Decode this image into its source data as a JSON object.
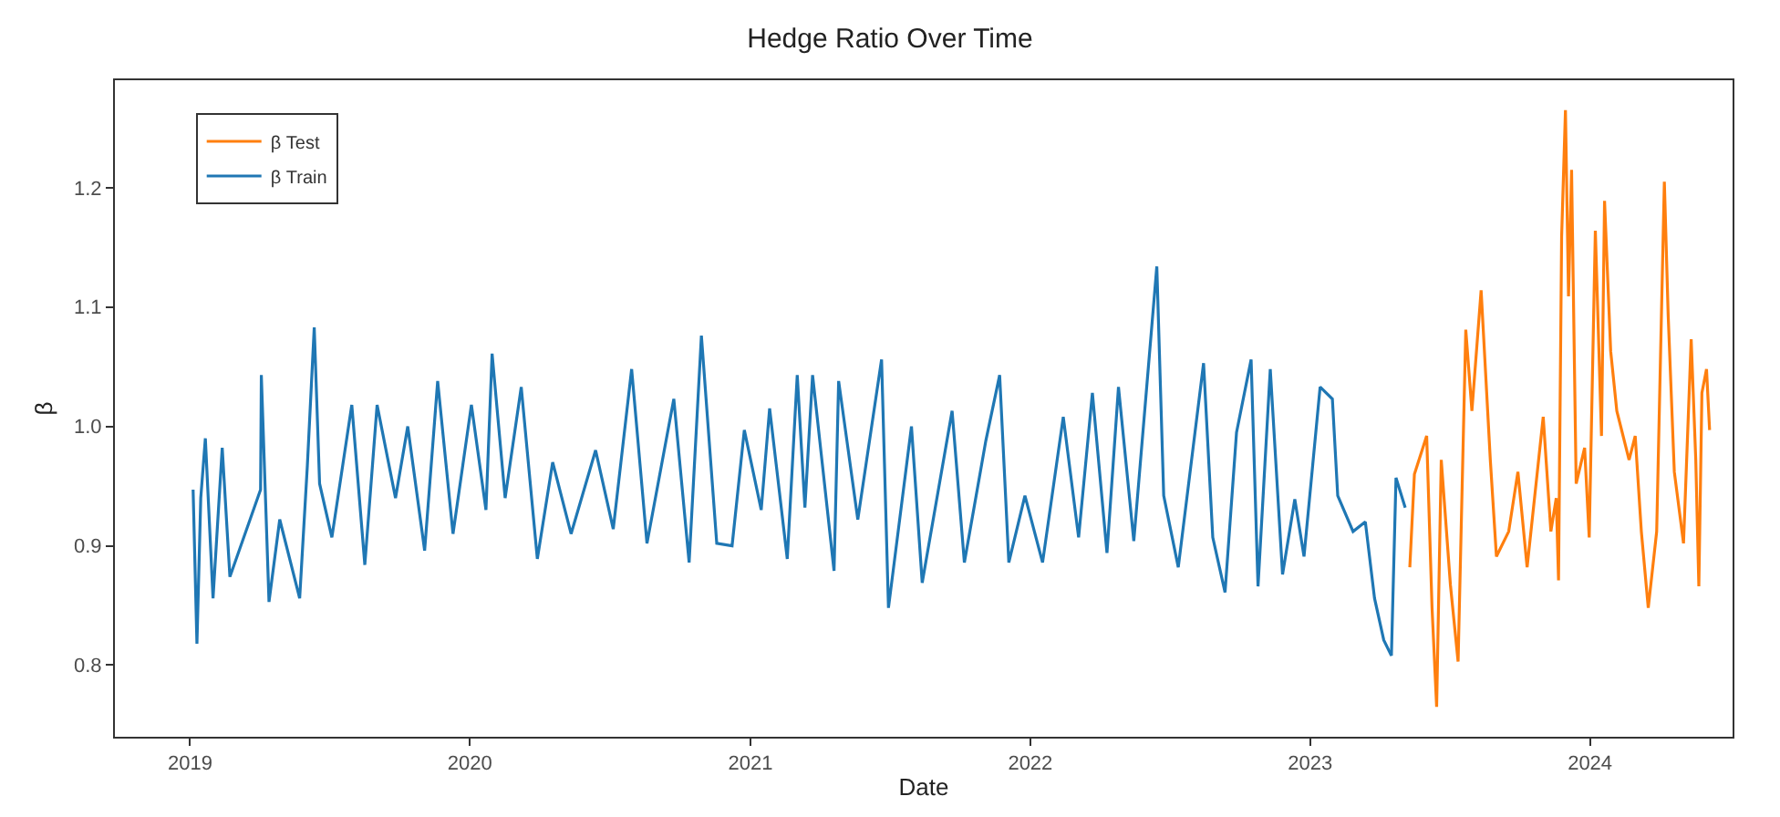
{
  "chart_data": {
    "type": "line",
    "title": "Hedge Ratio Over Time",
    "xlabel": "Date",
    "ylabel": "β",
    "xlim": [
      "2018-09-25",
      "2024-07-05"
    ],
    "ylim": [
      0.74,
      1.29
    ],
    "xticks": [
      "2019",
      "2020",
      "2021",
      "2022",
      "2023",
      "2024"
    ],
    "yticks": [
      0.8,
      0.9,
      {
        "value": 1.0,
        "label": "1.0"
      },
      1.1,
      1.2
    ],
    "grid": false,
    "legend": "top left",
    "marker": "none",
    "line_style": "solid",
    "series": [
      {
        "name": "β Test",
        "color": "#ff7f0e",
        "x": [
          "2023-05-11",
          "2023-05-17",
          "2023-06-02",
          "2023-06-09",
          "2023-06-15",
          "2023-06-21",
          "2023-07-03",
          "2023-07-13",
          "2023-07-23",
          "2023-07-31",
          "2023-08-12",
          "2023-08-24",
          "2023-09-01",
          "2023-09-17",
          "2023-09-29",
          "2023-10-11",
          "2023-11-01",
          "2023-11-11",
          "2023-11-18",
          "2023-11-21",
          "2023-11-25",
          "2023-11-30",
          "2023-12-04",
          "2023-12-08",
          "2023-12-14",
          "2023-12-25",
          "2023-12-31",
          "2024-01-08",
          "2024-01-16",
          "2024-01-20",
          "2024-01-28",
          "2024-02-05",
          "2024-02-21",
          "2024-02-29",
          "2024-03-08",
          "2024-03-17",
          "2024-03-28",
          "2024-04-07",
          "2024-04-12",
          "2024-04-20",
          "2024-05-02",
          "2024-05-12",
          "2024-05-18",
          "2024-05-22",
          "2024-05-26",
          "2024-06-01",
          "2024-06-05"
        ],
        "values": [
          0.882,
          0.96,
          0.992,
          0.848,
          0.765,
          0.972,
          0.867,
          0.803,
          1.081,
          1.013,
          1.114,
          0.972,
          0.891,
          0.912,
          0.962,
          0.882,
          1.008,
          0.912,
          0.94,
          0.871,
          1.159,
          1.265,
          1.109,
          1.215,
          0.952,
          0.982,
          0.907,
          1.164,
          0.992,
          1.189,
          1.063,
          1.013,
          0.972,
          0.992,
          0.912,
          0.848,
          0.912,
          1.205,
          1.093,
          0.962,
          0.902,
          1.073,
          0.972,
          0.866,
          1.028,
          1.048,
          0.997
        ]
      },
      {
        "name": "β Train",
        "color": "#1f77b4",
        "x": [
          "2019-01-05",
          "2019-01-10",
          "2019-01-15",
          "2019-01-21",
          "2019-01-31",
          "2019-02-12",
          "2019-02-22",
          "2019-04-03",
          "2019-04-04",
          "2019-04-14",
          "2019-04-28",
          "2019-05-24",
          "2019-06-03",
          "2019-06-12",
          "2019-06-19",
          "2019-07-05",
          "2019-07-31",
          "2019-08-17",
          "2019-09-02",
          "2019-09-26",
          "2019-10-12",
          "2019-11-03",
          "2019-11-20",
          "2019-12-10",
          "2020-01-03",
          "2020-01-22",
          "2020-01-30",
          "2020-02-16",
          "2020-03-08",
          "2020-03-29",
          "2020-04-18",
          "2020-05-12",
          "2020-06-13",
          "2020-07-06",
          "2020-07-30",
          "2020-08-19",
          "2020-09-23",
          "2020-10-13",
          "2020-10-29",
          "2020-11-18",
          "2020-12-08",
          "2020-12-24",
          "2021-01-15",
          "2021-01-26",
          "2021-02-18",
          "2021-03-03",
          "2021-03-13",
          "2021-03-23",
          "2021-04-20",
          "2021-04-26",
          "2021-05-21",
          "2021-06-21",
          "2021-06-30",
          "2021-07-30",
          "2021-08-13",
          "2021-09-21",
          "2021-10-07",
          "2021-11-04",
          "2021-11-22",
          "2021-12-04",
          "2021-12-25",
          "2022-01-17",
          "2022-02-13",
          "2022-03-05",
          "2022-03-23",
          "2022-04-11",
          "2022-04-26",
          "2022-05-16",
          "2022-06-15",
          "2022-06-24",
          "2022-07-13",
          "2022-08-15",
          "2022-08-27",
          "2022-09-12",
          "2022-09-27",
          "2022-10-16",
          "2022-10-25",
          "2022-11-10",
          "2022-11-26",
          "2022-12-12",
          "2022-12-24",
          "2023-01-14",
          "2023-01-30",
          "2023-02-06",
          "2023-02-26",
          "2023-03-14",
          "2023-03-26",
          "2023-04-07",
          "2023-04-17",
          "2023-04-23",
          "2023-05-05"
        ],
        "values": [
          0.947,
          0.818,
          0.94,
          0.99,
          0.856,
          0.982,
          0.874,
          0.947,
          1.043,
          0.853,
          0.922,
          0.856,
          0.967,
          1.083,
          0.952,
          0.907,
          1.018,
          0.884,
          1.018,
          0.94,
          1.0,
          0.896,
          1.038,
          0.91,
          1.018,
          0.93,
          1.061,
          0.94,
          1.033,
          0.889,
          0.97,
          0.91,
          0.98,
          0.914,
          1.048,
          0.902,
          1.023,
          0.886,
          1.076,
          0.902,
          0.9,
          0.997,
          0.93,
          1.015,
          0.889,
          1.043,
          0.932,
          1.043,
          0.879,
          1.038,
          0.922,
          1.056,
          0.848,
          1.0,
          0.869,
          1.013,
          0.886,
          0.988,
          1.043,
          0.886,
          0.942,
          0.886,
          1.008,
          0.907,
          1.028,
          0.894,
          1.033,
          0.904,
          1.134,
          0.942,
          0.882,
          1.053,
          0.907,
          0.861,
          0.995,
          1.056,
          0.866,
          1.048,
          0.876,
          0.939,
          0.891,
          1.033,
          1.023,
          0.942,
          0.912,
          0.92,
          0.856,
          0.821,
          0.808,
          0.957,
          0.932
        ]
      }
    ]
  }
}
